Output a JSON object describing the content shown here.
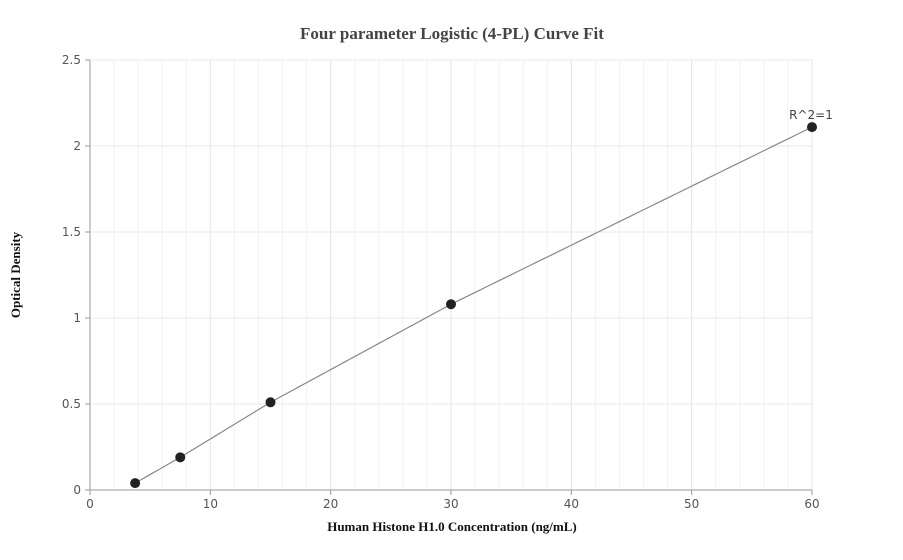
{
  "chart_data": {
    "type": "scatter",
    "title": "Four parameter Logistic (4-PL) Curve Fit",
    "xlabel": "Human Histone H1.0 Concentration (ng/mL)",
    "ylabel": "Optical Density",
    "xlim": [
      0,
      60
    ],
    "ylim": [
      0,
      2.5
    ],
    "x_ticks": [
      "0",
      "10",
      "20",
      "30",
      "40",
      "50",
      "60"
    ],
    "y_ticks": [
      "0",
      "0.5",
      "1",
      "1.5",
      "2",
      "2.5"
    ],
    "grid": true,
    "series": [
      {
        "points": [
          {
            "x": 3.75,
            "y": 0.04
          },
          {
            "x": 7.5,
            "y": 0.19
          },
          {
            "x": 15,
            "y": 0.51
          },
          {
            "x": 30,
            "y": 1.08
          },
          {
            "x": 60,
            "y": 2.11
          }
        ],
        "fit_curve": true
      }
    ],
    "annotation": "R^2=1",
    "colors": {
      "point": "#222222",
      "curve": "#888888",
      "grid": "#e6e8f0",
      "axis": "#999999"
    }
  }
}
